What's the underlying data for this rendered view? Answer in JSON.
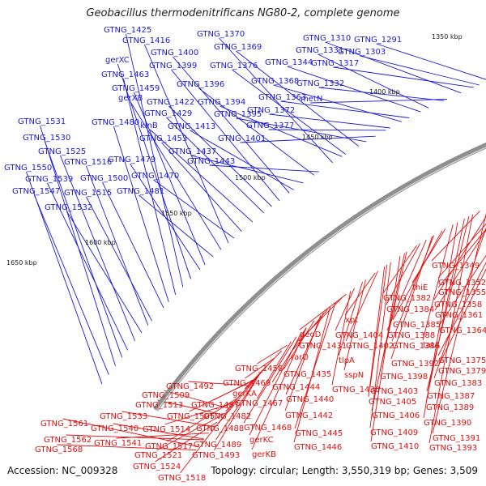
{
  "title": "Geobacillus thermodenitrificans NG80-2, complete genome",
  "footer": {
    "accession": "Accession: NC_009328",
    "summary": "Topology: circular; Length: 3,550,319 bp; Genes: 3,509"
  },
  "colors": {
    "forward_label": "#1a1adb",
    "reverse_label": "#e01010",
    "forward_arrow": "#1f39e6",
    "reverse_arrow": "#e01414",
    "backbone": "#8f8f8f",
    "tick": "#2e8b2e"
  },
  "ruler": [
    "1350 kbp",
    "1400 kbp",
    "1450 kbp",
    "1500 kbp",
    "1550 kbp",
    "1600 kbp",
    "1650 kbp"
  ],
  "forward_labels": [
    "GTNG_1425",
    "GTNG_1416",
    "GTNG_1370",
    "GTNG_1369",
    "GTNG_1310",
    "GTNG_1291",
    "GTNG_1400",
    "GTNG_1331",
    "GTNG_1303",
    "gerXC",
    "GTNG_1399",
    "GTNG_1376",
    "GTNG_1344",
    "GTNG_1317",
    "GTNG_1463",
    "GTNG_1396",
    "GTNG_1368",
    "GTNG_1332",
    "GTNG_1459",
    "gerXB",
    "GTNG_1422",
    "GTNG_1394",
    "GTNG_1363",
    "metN",
    "GTNG_1429",
    "GTNG_1395",
    "GTNG_1372",
    "GTNG_1531",
    "GTNG_1480",
    "kinB",
    "GTNG_1413",
    "GTNG_1377",
    "GTNG_1530",
    "GTNG_1453",
    "GTNG_1401",
    "GTNG_1525",
    "GTNG_1437",
    "GTNG_1516",
    "GTNG_1479",
    "GTNG_1443",
    "GTNG_1550",
    "GTNG_1539",
    "GTNG_1500",
    "GTNG_1470",
    "GTNG_1547",
    "GTNG_1515",
    "GTNG_1481",
    "GTNG_1532"
  ],
  "reverse_labels": [
    "GTNG_1349",
    "GTNG_1352",
    "thiE",
    "GTNG_1355",
    "GTNG_1382",
    "GTNG_1358",
    "GTNG_1384",
    "GTNG_1361",
    "xpt",
    "GTNG_1385",
    "GTNG_1364",
    "deoD",
    "GTNG_1404",
    "GTNG_1388",
    "tatA",
    "GTNG_1431",
    "GTNG_1402",
    "GTNG_1386",
    "rarD",
    "tlpA",
    "GTNG_1375",
    "GTNG_1392",
    "GTNG_1379",
    "GTNG_1458",
    "GTNG_1435",
    "sspN",
    "GTNG_1398",
    "GTNG_1383",
    "GTNG_1469",
    "GTNG_1444",
    "GTNG_1430",
    "GTNG_1403",
    "GTNG_1387",
    "GTNG_1492",
    "gerKA",
    "GTNG_1440",
    "GTNG_1405",
    "GTNG_1389",
    "GTNG_1509",
    "GTNG_1487",
    "GTNG_1467",
    "GTNG_1513",
    "GTNG_1442",
    "GTNG_1406",
    "GTNG_1390",
    "GTNG_1533",
    "GTNG_1505",
    "GTNG_1482",
    "GTNG_1561",
    "GTNG_1540",
    "GTNG_1514",
    "GTNG_1488",
    "GTNG_1468",
    "GTNG_1445",
    "GTNG_1409",
    "GTNG_1391",
    "gerKC",
    "GTNG_1562",
    "GTNG_1541",
    "GTNG_1517",
    "GTNG_1489",
    "GTNG_1446",
    "GTNG_1410",
    "GTNG_1393",
    "GTNG_1568",
    "GTNG_1521",
    "GTNG_1493",
    "gerKB",
    "GTNG_1524",
    "GTNG_1518"
  ]
}
